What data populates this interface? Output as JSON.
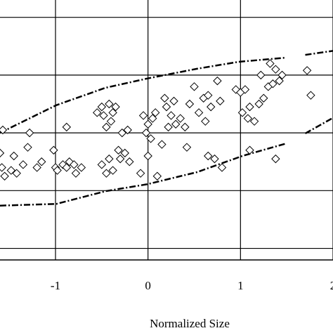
{
  "chart_data": {
    "type": "scatter",
    "x_label": "Normalized Size",
    "xlim": [
      -1.6,
      2.0
    ],
    "ylim": [
      -2.2,
      2.3
    ],
    "xticks": [
      -1,
      0,
      1,
      2
    ],
    "yticks": [
      -2,
      -1,
      0,
      1,
      2
    ],
    "grid": true,
    "color": "#000000",
    "x": [
      -1.57,
      -1.6,
      -1.58,
      -1.55,
      -1.48,
      -1.45,
      -1.42,
      -1.35,
      -1.3,
      -1.28,
      -1.2,
      -1.15,
      -1.02,
      -1.0,
      -0.98,
      -0.92,
      -0.88,
      -0.85,
      -0.8,
      -0.78,
      -0.72,
      -0.88,
      -0.55,
      -0.5,
      -0.48,
      -0.45,
      -0.42,
      -0.4,
      -0.38,
      -0.35,
      -0.5,
      -0.45,
      -0.42,
      -0.38,
      -0.32,
      -0.3,
      -0.25,
      -0.2,
      -0.28,
      -0.22,
      -0.05,
      -0.02,
      0.0,
      0.03,
      0.05,
      0.08,
      -0.08,
      0.1,
      0.15,
      0.18,
      0.2,
      0.22,
      0.25,
      0.28,
      0.3,
      0.0,
      0.35,
      0.4,
      0.42,
      0.45,
      0.5,
      0.55,
      0.6,
      0.62,
      0.65,
      0.68,
      0.65,
      0.72,
      0.8,
      0.75,
      0.78,
      0.95,
      1.0,
      1.02,
      1.05,
      1.08,
      1.1,
      1.15,
      1.2,
      1.22,
      1.25,
      1.3,
      1.32,
      1.35,
      1.38,
      1.42,
      1.45,
      1.38,
      1.1,
      1.72,
      1.76
    ],
    "values": [
      0.05,
      -0.35,
      -0.6,
      -0.75,
      -0.65,
      -0.4,
      -0.7,
      -0.55,
      -0.25,
      0.0,
      -0.6,
      -0.5,
      -0.3,
      -0.6,
      -0.65,
      -0.55,
      -0.6,
      -0.5,
      -0.55,
      -0.7,
      -0.6,
      0.1,
      0.35,
      0.45,
      0.3,
      0.1,
      0.5,
      0.2,
      0.35,
      0.45,
      -0.55,
      -0.7,
      -0.45,
      -0.65,
      -0.3,
      -0.45,
      -0.35,
      -0.5,
      0.0,
      0.05,
      0.3,
      0.0,
      0.15,
      -0.1,
      0.25,
      0.35,
      -0.7,
      -0.75,
      -0.2,
      0.6,
      0.45,
      0.1,
      0.3,
      0.55,
      0.15,
      -0.4,
      0.25,
      0.1,
      -0.25,
      0.5,
      0.8,
      0.35,
      0.6,
      0.2,
      0.65,
      0.45,
      -0.4,
      -0.45,
      -0.6,
      0.9,
      0.55,
      0.75,
      0.7,
      0.35,
      0.75,
      0.25,
      0.45,
      0.2,
      0.5,
      1.0,
      0.6,
      0.8,
      1.2,
      0.85,
      1.1,
      0.9,
      1.0,
      -0.45,
      -0.3,
      1.08,
      0.65
    ],
    "bounds": [
      {
        "x": [
          -1.6,
          -0.99,
          -0.46,
          -0.01,
          0.53,
          0.98,
          1.48,
          1.6,
          1.7,
          2.0
        ],
        "values": [
          0.0,
          0.48,
          0.78,
          0.94,
          1.11,
          1.23,
          1.3,
          null,
          1.35,
          1.42
        ]
      },
      {
        "x": [
          -1.6,
          -0.99,
          -0.46,
          -0.01,
          0.53,
          1.02,
          1.48,
          1.6,
          1.7,
          2.0
        ],
        "values": [
          -1.26,
          -1.23,
          -1.01,
          -0.89,
          -0.68,
          -0.4,
          -0.19,
          null,
          -0.01,
          0.26
        ]
      }
    ]
  }
}
